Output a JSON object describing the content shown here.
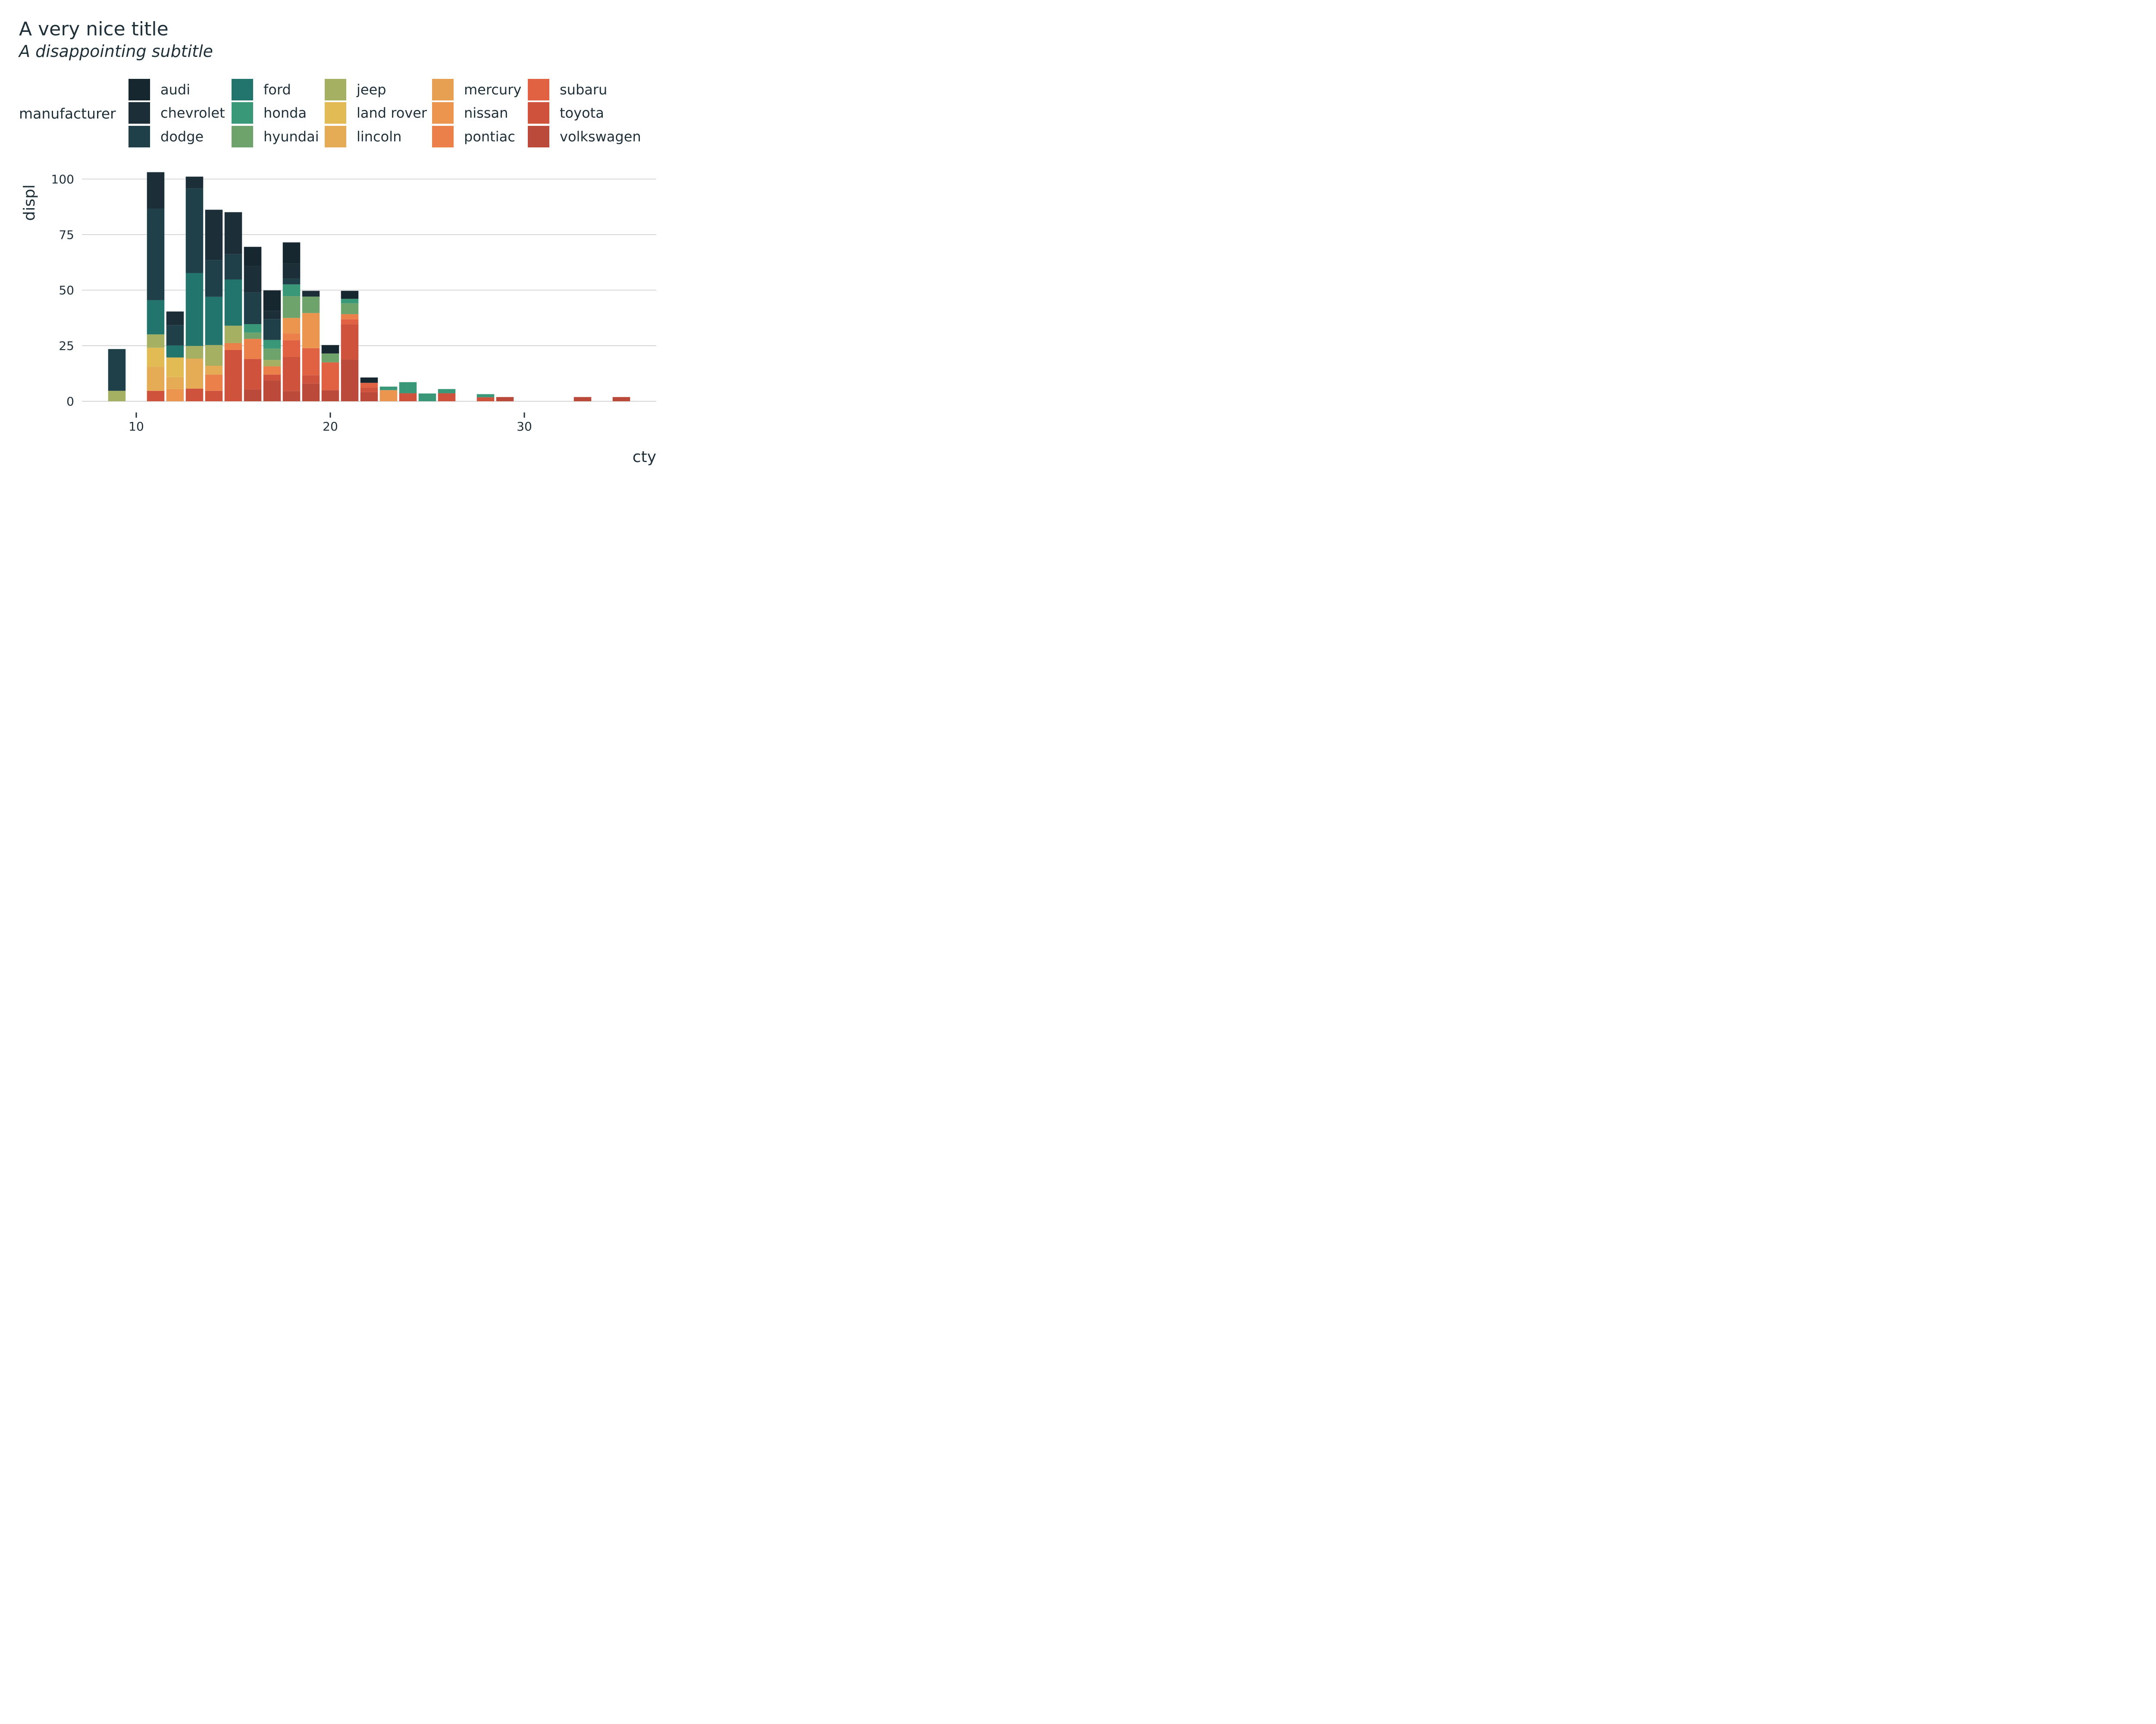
{
  "chart_data": {
    "type": "bar",
    "stacked": true,
    "title": "A very nice title",
    "subtitle": "A disappointing subtitle",
    "xlabel": "cty",
    "ylabel": "displ",
    "xlim": [
      7.2,
      36.8
    ],
    "ylim": [
      0,
      103
    ],
    "xticks": [
      "10",
      "20",
      "30"
    ],
    "yticks": [
      "0",
      "25",
      "50",
      "75",
      "100"
    ],
    "grid": "horizontal",
    "legend": {
      "title": "manufacturer",
      "position": "top"
    },
    "bar_width": 0.9,
    "x": [
      9,
      11,
      12,
      13,
      14,
      15,
      16,
      17,
      18,
      19,
      20,
      21,
      22,
      23,
      24,
      25,
      26,
      28,
      29,
      33,
      35
    ],
    "series": [
      {
        "name": "audi",
        "color": "#172730",
        "values": [
          0,
          0,
          0,
          0,
          0,
          0,
          8.7,
          9.2,
          9.6,
          0,
          3.8,
          3.6,
          2.4,
          0,
          0,
          0,
          0,
          0,
          0,
          0,
          0
        ]
      },
      {
        "name": "chevrolet",
        "color": "#1c2f39",
        "values": [
          0,
          16.4,
          6.1,
          5.3,
          22.6,
          18.9,
          11.8,
          3.7,
          6.7,
          2.6,
          0,
          0,
          0,
          0,
          0,
          0,
          0,
          0,
          0,
          0,
          0
        ]
      },
      {
        "name": "dodge",
        "color": "#1f4049",
        "values": [
          18.8,
          41.2,
          9.2,
          38.1,
          16.6,
          11.4,
          14.3,
          9.4,
          2.6,
          0,
          0,
          0,
          0,
          0,
          0,
          0,
          0,
          0,
          0,
          0,
          0
        ]
      },
      {
        "name": "ford",
        "color": "#22756d",
        "values": [
          0,
          15.4,
          5.4,
          32.8,
          21.7,
          20.8,
          0,
          0,
          0,
          0,
          0,
          0,
          0,
          0,
          0,
          0,
          0,
          0,
          0,
          0,
          0
        ]
      },
      {
        "name": "honda",
        "color": "#389878",
        "values": [
          0,
          0,
          0,
          0,
          0,
          0,
          3.8,
          3.9,
          5.3,
          0,
          0,
          2.0,
          0,
          1.6,
          5.0,
          3.5,
          1.9,
          1.4,
          0,
          0,
          0
        ]
      },
      {
        "name": "hyundai",
        "color": "#6ea36c",
        "values": [
          0,
          0,
          0,
          0,
          0,
          0,
          2.8,
          5.1,
          9.8,
          7.4,
          4.0,
          4.9,
          0,
          0,
          0,
          0,
          0,
          0,
          0,
          0,
          0
        ]
      },
      {
        "name": "jeep",
        "color": "#a5b062",
        "values": [
          4.7,
          6.0,
          0,
          5.7,
          9.3,
          7.8,
          0,
          2.9,
          0,
          0,
          0,
          0,
          0,
          0,
          0,
          0,
          0,
          0,
          0,
          0,
          0
        ]
      },
      {
        "name": "land rover",
        "color": "#e2bb55",
        "values": [
          0,
          8.6,
          8.8,
          0,
          0,
          0,
          0,
          0,
          0,
          0,
          0,
          0,
          0,
          0,
          0,
          0,
          0,
          0,
          0,
          0,
          0
        ]
      },
      {
        "name": "lincoln",
        "color": "#e5ac55",
        "values": [
          0,
          10.8,
          5.4,
          13.5,
          4.0,
          0,
          0,
          0,
          0,
          0,
          0,
          0,
          0,
          0,
          0,
          0,
          0,
          0,
          0,
          0,
          0
        ]
      },
      {
        "name": "mercury",
        "color": "#e7a052",
        "values": [
          0,
          0,
          0,
          0,
          0,
          0,
          0,
          0,
          0,
          0,
          0,
          0,
          0,
          0,
          0,
          0,
          0,
          0,
          0,
          0,
          0
        ]
      },
      {
        "name": "nissan",
        "color": "#ec954f",
        "values": [
          0,
          0,
          5.5,
          0,
          0,
          0,
          0,
          0,
          6.9,
          15.8,
          0,
          0,
          0,
          5.0,
          0,
          0,
          0,
          0,
          0,
          0,
          0
        ]
      },
      {
        "name": "pontiac",
        "color": "#ec804a",
        "values": [
          0,
          0,
          0,
          0,
          7.3,
          3.1,
          9.1,
          3.7,
          3.1,
          0,
          0,
          2.3,
          0,
          0,
          0,
          0,
          0,
          0,
          0,
          0,
          0
        ]
      },
      {
        "name": "subaru",
        "color": "#e06243",
        "values": [
          0,
          0,
          0,
          0,
          0,
          0,
          0,
          0,
          7.5,
          12.2,
          12.5,
          2.2,
          2.2,
          0,
          0,
          0,
          0,
          0,
          0,
          0,
          0
        ]
      },
      {
        "name": "toyota",
        "color": "#cf523d",
        "values": [
          0,
          4.7,
          0,
          5.7,
          4.7,
          23.1,
          13.6,
          2.7,
          15.4,
          3.7,
          0,
          15.9,
          2.0,
          0,
          3.6,
          0,
          3.6,
          1.8,
          0,
          0,
          0
        ]
      },
      {
        "name": "volkswagen",
        "color": "#bb4a3a",
        "values": [
          0,
          0,
          0,
          0,
          0,
          0,
          5.4,
          9.3,
          4.6,
          8.0,
          5.0,
          18.8,
          4.1,
          0,
          0,
          0,
          0,
          0,
          1.9,
          1.9,
          1.9
        ]
      }
    ]
  }
}
